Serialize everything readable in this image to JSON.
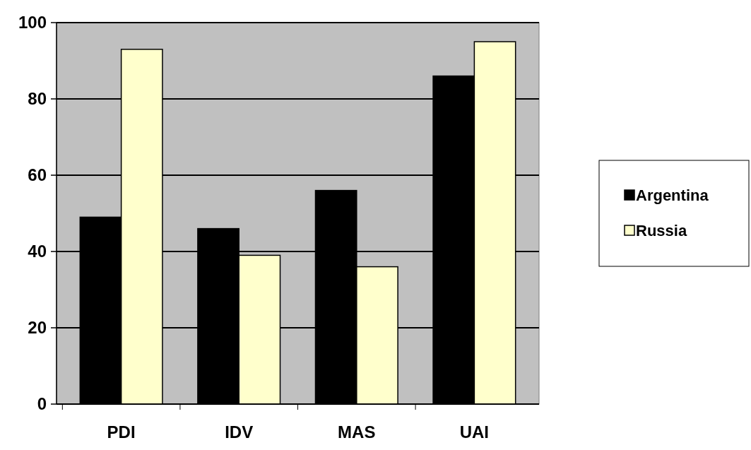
{
  "chart_data": {
    "type": "bar",
    "categories": [
      "PDI",
      "IDV",
      "MAS",
      "UAI"
    ],
    "series": [
      {
        "name": "Argentina",
        "color": "#000000",
        "values": [
          49,
          46,
          56,
          86
        ]
      },
      {
        "name": "Russia",
        "color": "#ffffcc",
        "values": [
          93,
          39,
          36,
          95
        ]
      }
    ],
    "ylim": [
      0,
      100
    ],
    "yticks": [
      0,
      20,
      40,
      60,
      80,
      100
    ],
    "grid": "y",
    "legend": "right"
  }
}
